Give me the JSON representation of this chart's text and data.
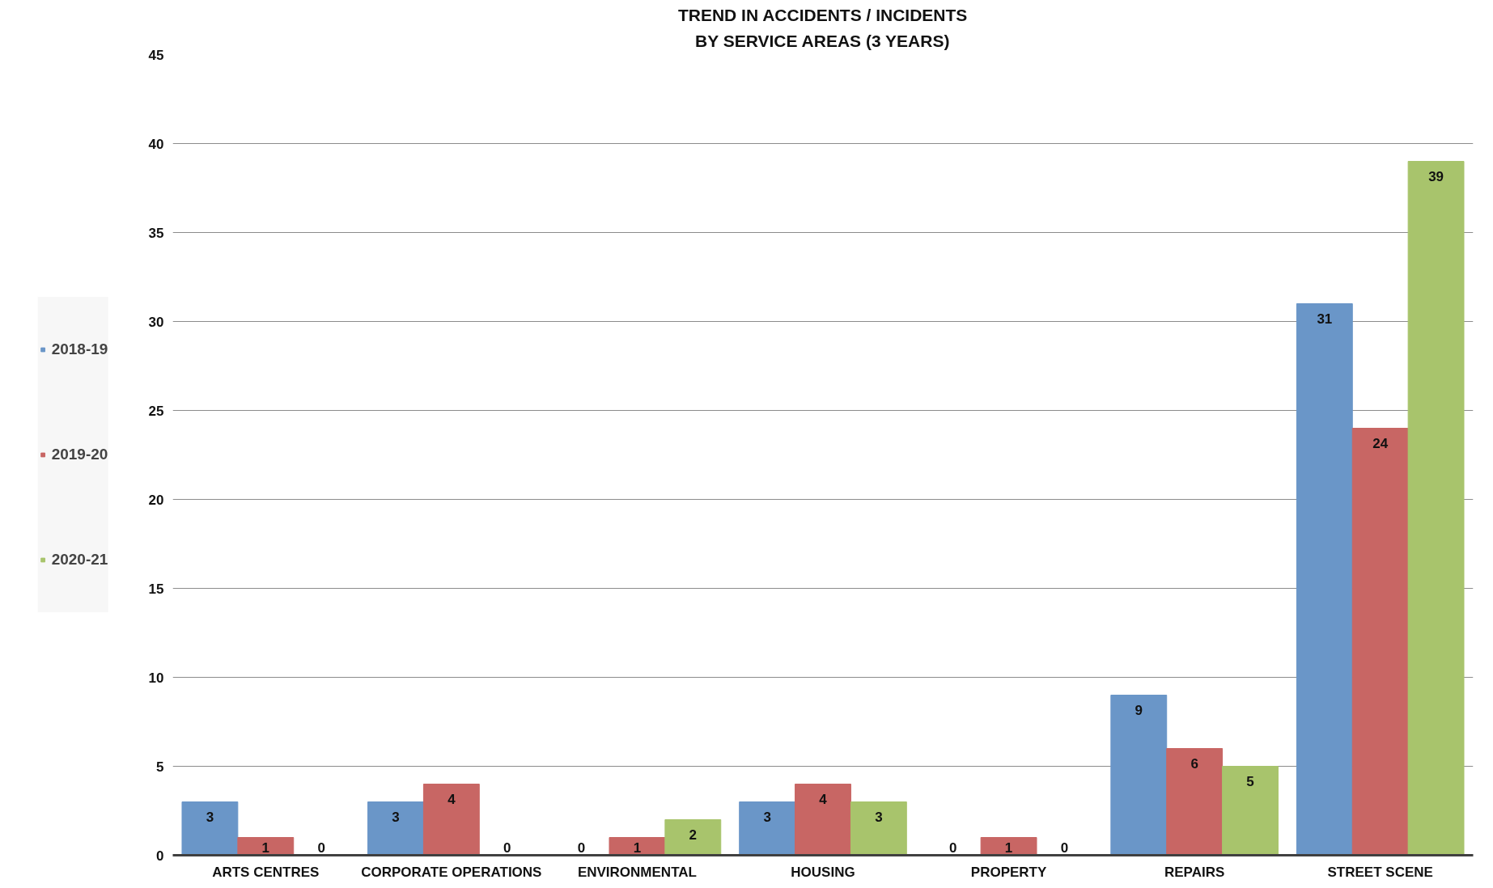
{
  "chart_data": {
    "type": "bar",
    "title": "TREND IN ACCIDENTS / INCIDENTS\nBY SERVICE AREAS (3 YEARS)",
    "categories": [
      "ARTS CENTRES",
      "CORPORATE OPERATIONS",
      "ENVIRONMENTAL",
      "HOUSING",
      "PROPERTY",
      "REPAIRS",
      "STREET SCENE"
    ],
    "series": [
      {
        "name": "2018-19",
        "color": "#6a96c8",
        "values": [
          3,
          3,
          0,
          3,
          0,
          9,
          31
        ]
      },
      {
        "name": "2019-20",
        "color": "#c86664",
        "values": [
          1,
          4,
          1,
          4,
          1,
          6,
          24
        ]
      },
      {
        "name": "2020-21",
        "color": "#a8c46c",
        "values": [
          0,
          0,
          2,
          3,
          0,
          5,
          39
        ]
      }
    ],
    "ylim": [
      0,
      45
    ],
    "yticks": [
      0,
      5,
      10,
      15,
      20,
      25,
      30,
      35,
      40,
      45
    ],
    "grid": "y",
    "legend": "left",
    "data_labels": true
  }
}
